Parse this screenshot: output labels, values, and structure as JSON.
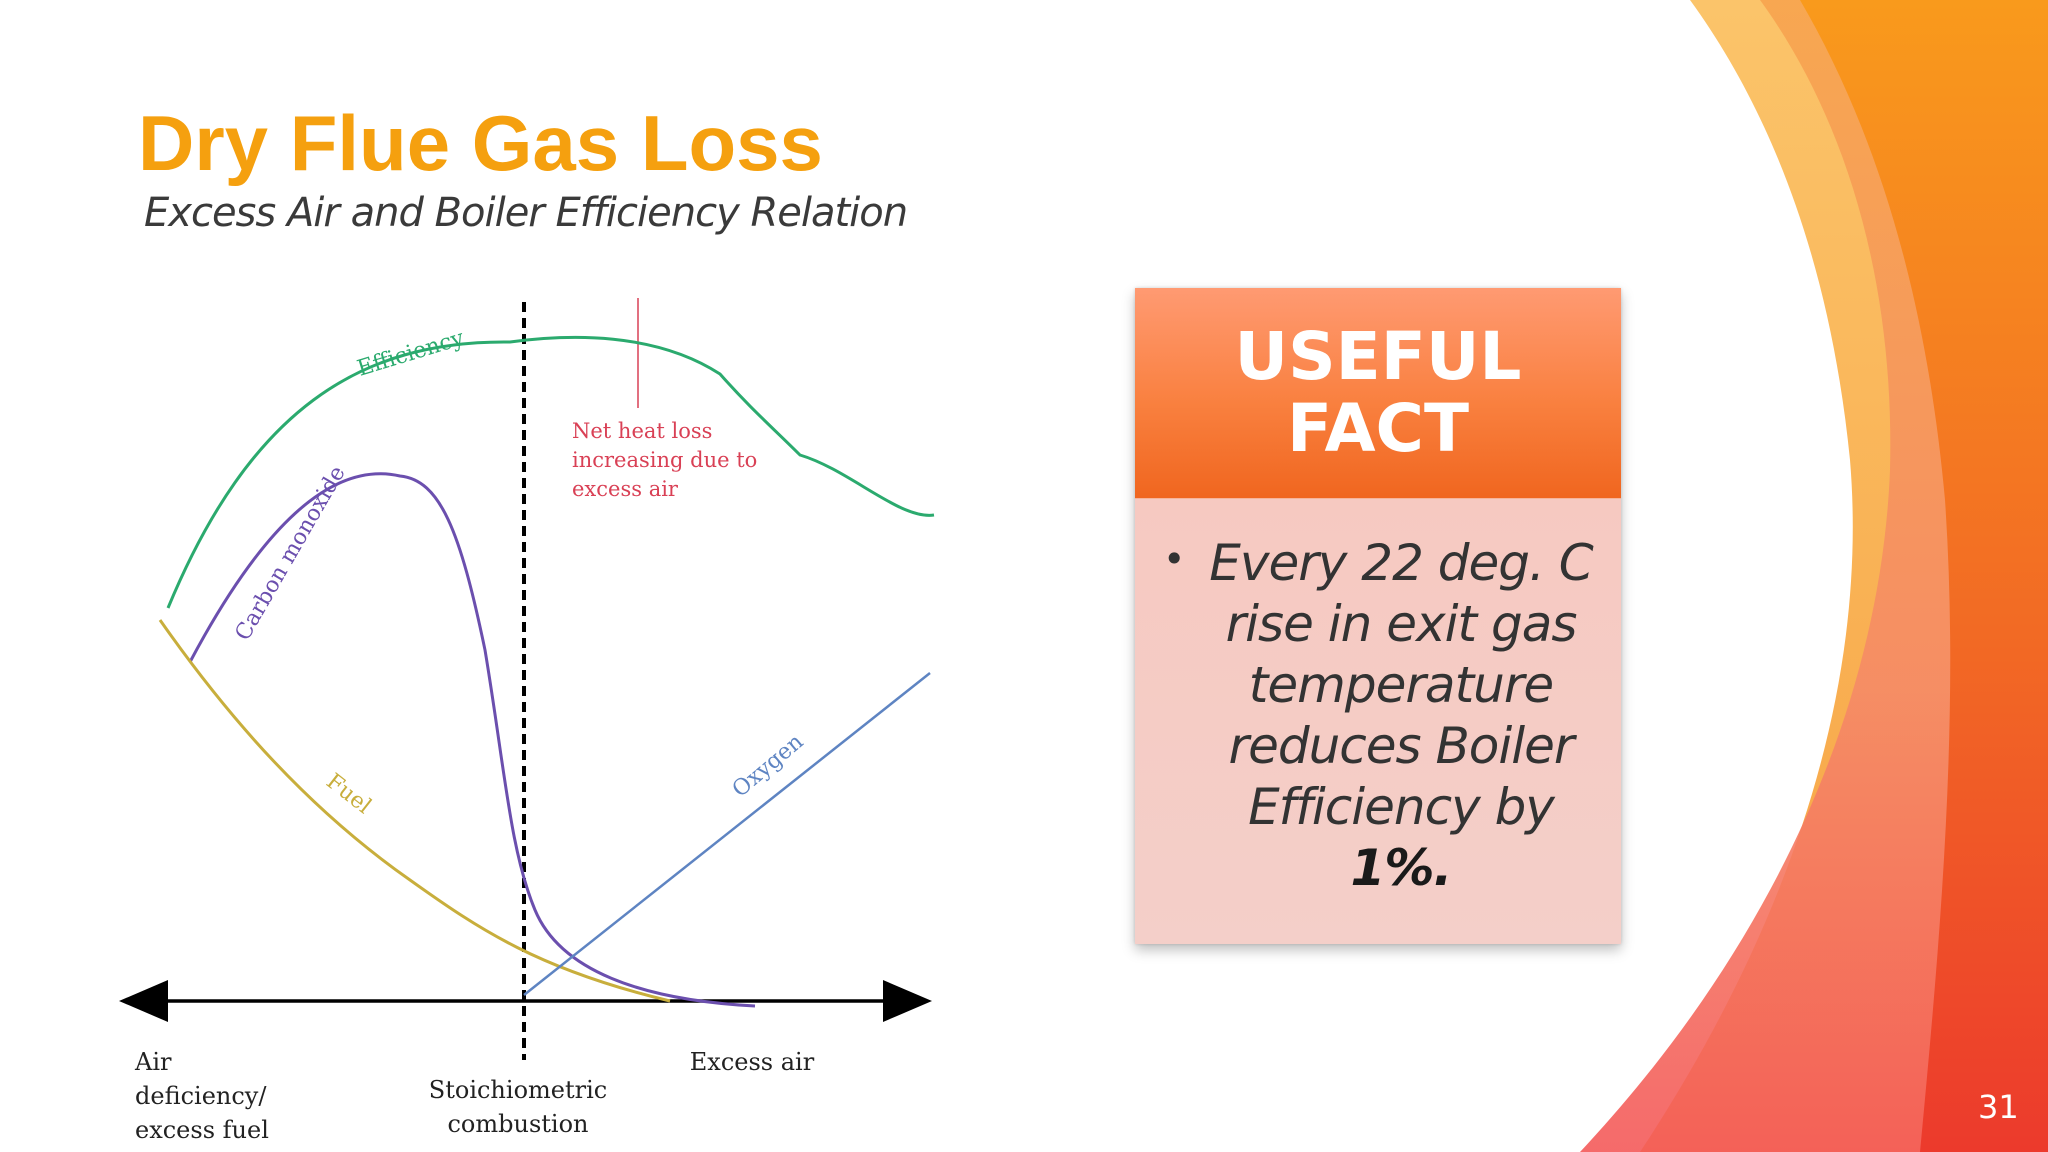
{
  "slide": {
    "title": "Dry Flue Gas Loss",
    "subtitle": "Excess Air and Boiler Efficiency Relation",
    "page_number": "31"
  },
  "diagram": {
    "curve_labels": {
      "efficiency": "Efficiency",
      "carbon_monoxide": "Carbon monoxide",
      "fuel": "Fuel",
      "oxygen": "Oxygen"
    },
    "annotation_lines": [
      "Net heat loss",
      "increasing due to",
      "excess air"
    ],
    "axis_labels": {
      "left": [
        "Air",
        "deficiency/",
        "excess fuel"
      ],
      "center": [
        "Stoichiometric",
        "combustion"
      ],
      "right": "Excess air"
    },
    "colors": {
      "efficiency": "#2BAA6E",
      "carbon_monoxide": "#6B4FAE",
      "fuel": "#C8AE3C",
      "oxygen": "#5E84C2",
      "annotation": "#D94055"
    }
  },
  "fact": {
    "header": "USEFUL FACT",
    "text": "Every 22 deg. C rise in exit gas temperature reduces Boiler Efficiency by",
    "bold": "1%."
  },
  "theme": {
    "accent": "#F5A00F",
    "swoosh_orange": "#F7931E",
    "swoosh_red": "#EE3B2B"
  }
}
